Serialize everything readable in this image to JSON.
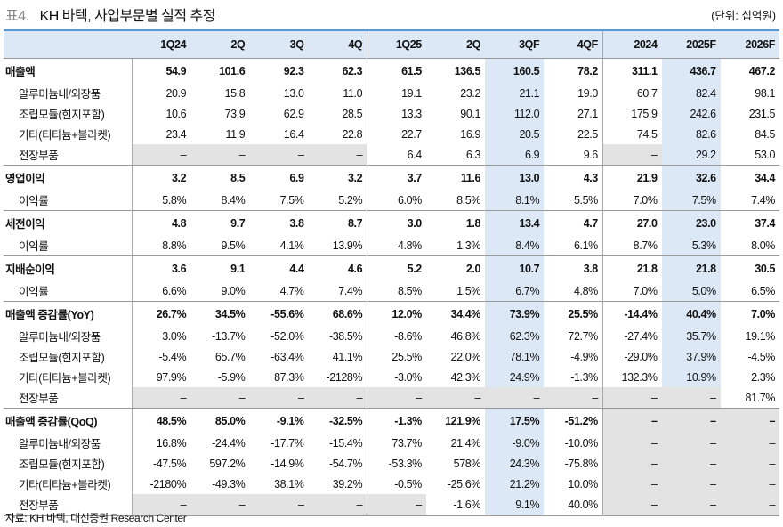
{
  "title": {
    "number": "표4.",
    "text": "KH 바텍, 사업부문별 실적 추정"
  },
  "unit": "(단위: 십억원)",
  "columns": [
    "1Q24",
    "2Q",
    "3Q",
    "4Q",
    "1Q25",
    "2Q",
    "3QF",
    "4QF",
    "2024",
    "2025F",
    "2026F"
  ],
  "groups": [
    {
      "rows": [
        {
          "label": "매출액",
          "values": [
            "54.9",
            "101.6",
            "92.3",
            "62.3",
            "61.5",
            "136.5",
            "160.5",
            "78.2",
            "311.1",
            "436.7",
            "467.2"
          ]
        },
        {
          "label": "알루미늄내/외장품",
          "values": [
            "20.9",
            "15.8",
            "13.0",
            "11.0",
            "19.1",
            "23.2",
            "21.1",
            "19.0",
            "60.7",
            "82.4",
            "98.1"
          ]
        },
        {
          "label": "조립모듈(힌지포함)",
          "values": [
            "10.6",
            "73.9",
            "62.9",
            "28.5",
            "13.3",
            "90.1",
            "112.0",
            "27.1",
            "175.9",
            "242.6",
            "231.5"
          ]
        },
        {
          "label": "기타(티타늄+블라켓)",
          "values": [
            "23.4",
            "11.9",
            "16.4",
            "22.8",
            "22.7",
            "16.9",
            "20.5",
            "22.5",
            "74.5",
            "82.6",
            "84.5"
          ]
        },
        {
          "label": "전장부품",
          "values": [
            "–",
            "–",
            "–",
            "–",
            "6.4",
            "6.3",
            "6.9",
            "9.6",
            "–",
            "29.2",
            "53.0"
          ]
        }
      ]
    },
    {
      "rows": [
        {
          "label": "영업이익",
          "values": [
            "3.2",
            "8.5",
            "6.9",
            "3.2",
            "3.7",
            "11.6",
            "13.0",
            "4.3",
            "21.9",
            "32.6",
            "34.4"
          ]
        },
        {
          "label": "이익률",
          "values": [
            "5.8%",
            "8.4%",
            "7.5%",
            "5.2%",
            "6.0%",
            "8.5%",
            "8.1%",
            "5.5%",
            "7.0%",
            "7.5%",
            "7.4%"
          ]
        }
      ]
    },
    {
      "rows": [
        {
          "label": "세전이익",
          "values": [
            "4.8",
            "9.7",
            "3.8",
            "8.7",
            "3.0",
            "1.8",
            "13.4",
            "4.7",
            "27.0",
            "23.0",
            "37.4"
          ]
        },
        {
          "label": "이익률",
          "values": [
            "8.8%",
            "9.5%",
            "4.1%",
            "13.9%",
            "4.8%",
            "1.3%",
            "8.4%",
            "6.1%",
            "8.7%",
            "5.3%",
            "8.0%"
          ]
        }
      ]
    },
    {
      "rows": [
        {
          "label": "지배순이익",
          "values": [
            "3.6",
            "9.1",
            "4.4",
            "4.6",
            "5.2",
            "2.0",
            "10.7",
            "3.8",
            "21.8",
            "21.8",
            "30.5"
          ]
        },
        {
          "label": "이익률",
          "values": [
            "6.6%",
            "9.0%",
            "4.7%",
            "7.4%",
            "8.5%",
            "1.5%",
            "6.7%",
            "4.8%",
            "7.0%",
            "5.0%",
            "6.5%"
          ]
        }
      ]
    },
    {
      "rows": [
        {
          "label": "매출액 증감률(YoY)",
          "values": [
            "26.7%",
            "34.5%",
            "-55.6%",
            "68.6%",
            "12.0%",
            "34.4%",
            "73.9%",
            "25.5%",
            "-14.4%",
            "40.4%",
            "7.0%"
          ]
        },
        {
          "label": "알루미늄내/외장품",
          "values": [
            "3.0%",
            "-13.7%",
            "-52.0%",
            "-38.5%",
            "-8.6%",
            "46.8%",
            "62.3%",
            "72.7%",
            "-27.4%",
            "35.7%",
            "19.1%"
          ]
        },
        {
          "label": "조립모듈(힌지포함)",
          "values": [
            "-5.4%",
            "65.7%",
            "-63.4%",
            "41.1%",
            "25.5%",
            "22.0%",
            "78.1%",
            "-4.9%",
            "-29.0%",
            "37.9%",
            "-4.5%"
          ]
        },
        {
          "label": "기타(티타늄+블라켓)",
          "values": [
            "97.9%",
            "-5.9%",
            "87.3%",
            "-2128%",
            "-3.0%",
            "42.3%",
            "24.9%",
            "-1.3%",
            "132.3%",
            "10.9%",
            "2.3%"
          ]
        },
        {
          "label": "전장부품",
          "values": [
            "–",
            "–",
            "–",
            "–",
            "–",
            "–",
            "–",
            "–",
            "–",
            "–",
            "81.7%"
          ]
        }
      ]
    },
    {
      "rows": [
        {
          "label": "매출액 증감률(QoQ)",
          "values": [
            "48.5%",
            "85.0%",
            "-9.1%",
            "-32.5%",
            "-1.3%",
            "121.9%",
            "17.5%",
            "-51.2%",
            "–",
            "–",
            "–"
          ]
        },
        {
          "label": "알루미늄내/외장품",
          "values": [
            "16.8%",
            "-24.4%",
            "-17.7%",
            "-15.4%",
            "73.7%",
            "21.4%",
            "-9.0%",
            "-10.0%",
            "–",
            "–",
            "–"
          ]
        },
        {
          "label": "조립모듈(힌지포함)",
          "values": [
            "-47.5%",
            "597.2%",
            "-14.9%",
            "-54.7%",
            "-53.3%",
            "578%",
            "24.3%",
            "-75.8%",
            "–",
            "–",
            "–"
          ]
        },
        {
          "label": "기타(티타늄+블라켓)",
          "values": [
            "-2180%",
            "-49.3%",
            "38.1%",
            "39.2%",
            "-0.5%",
            "-25.6%",
            "21.2%",
            "10.0%",
            "–",
            "–",
            "–"
          ]
        },
        {
          "label": "전장부품",
          "values": [
            "–",
            "–",
            "–",
            "–",
            "–",
            "-1.6%",
            "9.1%",
            "40.0%",
            "–",
            "–",
            "–"
          ]
        }
      ]
    }
  ],
  "footer": "자료: KH 바텍, 대신증권 Research Center"
}
